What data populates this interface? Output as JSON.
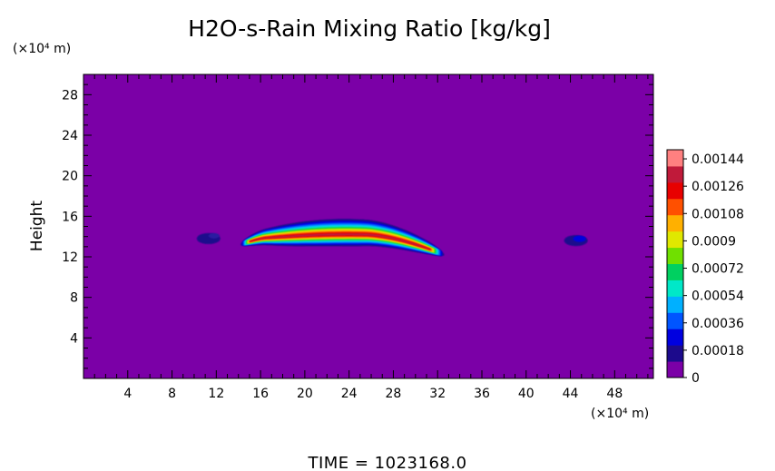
{
  "chart_data": {
    "type": "heatmap",
    "title": "H2O-s-Rain Mixing Ratio [kg/kg]",
    "ylabel": "Height",
    "x_unit": "(×10⁴ m)",
    "y_unit": "(×10⁴ m)",
    "xlim": [
      0,
      51.5
    ],
    "ylim": [
      0,
      30
    ],
    "x_ticks": [
      "4",
      "8",
      "12",
      "16",
      "20",
      "24",
      "28",
      "32",
      "36",
      "40",
      "44",
      "48"
    ],
    "y_ticks": [
      "4",
      "8",
      "12",
      "16",
      "20",
      "24",
      "28"
    ],
    "colorbar": {
      "min": 0,
      "max": 0.0015,
      "labels": [
        "0.00144",
        "0.00126",
        "0.00108",
        "0.0009",
        "0.00072",
        "0.00054",
        "0.00036",
        "0.00018",
        "0"
      ],
      "colors": [
        "#7b00a7",
        "#1c0a8c",
        "#0000e0",
        "#0055ff",
        "#00b0ff",
        "#00e8c8",
        "#00d060",
        "#70e000",
        "#e0e800",
        "#ffb000",
        "#ff5000",
        "#e80000",
        "#c01a3a",
        "#ff8080"
      ]
    },
    "features": [
      {
        "name": "main rain band",
        "x_range": [
          14.2,
          32.6
        ],
        "y_center": 13.5,
        "max_value": 0.00144
      },
      {
        "name": "left patch",
        "x_center": 11.3,
        "y_center": 13.8,
        "max_value": 0.00018
      },
      {
        "name": "right patch",
        "x_center": 44.5,
        "y_center": 13.6,
        "max_value": 0.00018
      }
    ]
  },
  "footer": {
    "time_label": "TIME = 1023168.0"
  }
}
